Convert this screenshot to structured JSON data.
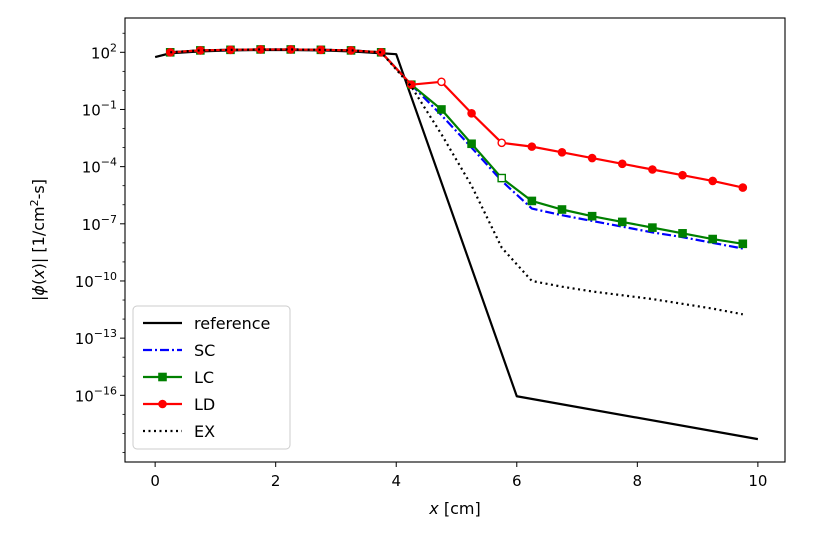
{
  "chart_data": {
    "type": "line",
    "title": "",
    "xlabel_italic": "x",
    "xlabel_rest": " [cm]",
    "ylabel": {
      "pre": "|",
      "phi": "ϕ",
      "mid": "(",
      "x": "x",
      "post": ")| [1/cm",
      "sup": "2",
      "end": "-s]"
    },
    "xscale": "linear",
    "yscale": "log",
    "xlim": [
      -0.5,
      10.45
    ],
    "ylim_exp": [
      -19.5,
      3.8
    ],
    "xticks": [
      0,
      2,
      4,
      6,
      8,
      10
    ],
    "xtick_labels": [
      "0",
      "2",
      "4",
      "6",
      "8",
      "10"
    ],
    "yticks_exp": [
      2,
      -1,
      -4,
      -7,
      -10,
      -13,
      -16
    ],
    "ytick_labels": [
      {
        "base": "10",
        "exp": "2"
      },
      {
        "base": "10",
        "exp": "−1"
      },
      {
        "base": "10",
        "exp": "−4"
      },
      {
        "base": "10",
        "exp": "−7"
      },
      {
        "base": "10",
        "exp": "−10"
      },
      {
        "base": "10",
        "exp": "−13"
      },
      {
        "base": "10",
        "exp": "−16"
      }
    ],
    "legend_position": "lower-left",
    "series": [
      {
        "name": "reference",
        "color": "#000000",
        "style": "solid",
        "marker": "none",
        "x": [
          0.0,
          0.25,
          0.75,
          1.25,
          1.75,
          2.25,
          2.75,
          3.25,
          3.75,
          4.0,
          6.0,
          10.0
        ],
        "log10_y": [
          1.75,
          1.95,
          2.05,
          2.1,
          2.12,
          2.12,
          2.1,
          2.05,
          1.95,
          1.9,
          -16.05,
          -18.3
        ]
      },
      {
        "name": "SC",
        "color": "#0000ff",
        "style": "dashdot",
        "marker": "none",
        "x": [
          0.25,
          0.75,
          1.25,
          1.75,
          2.25,
          2.75,
          3.25,
          3.75,
          4.25,
          4.75,
          5.25,
          5.75,
          6.25,
          6.75,
          7.25,
          7.75,
          8.25,
          8.75,
          9.25,
          9.75
        ],
        "log10_y": [
          2.0,
          2.1,
          2.13,
          2.15,
          2.15,
          2.13,
          2.1,
          2.0,
          0.3,
          -1.3,
          -3.0,
          -4.75,
          -6.2,
          -6.55,
          -6.85,
          -7.15,
          -7.45,
          -7.7,
          -8.0,
          -8.3
        ]
      },
      {
        "name": "LC",
        "color": "#008000",
        "style": "solid",
        "marker": "square",
        "x": [
          0.25,
          0.75,
          1.25,
          1.75,
          2.25,
          2.75,
          3.25,
          3.75,
          4.25,
          4.75,
          5.25,
          5.75,
          6.25,
          6.75,
          7.25,
          7.75,
          8.25,
          8.75,
          9.25,
          9.75
        ],
        "log10_y": [
          2.0,
          2.1,
          2.13,
          2.15,
          2.15,
          2.13,
          2.1,
          2.0,
          0.3,
          -1.0,
          -2.8,
          -4.6,
          -5.8,
          -6.25,
          -6.6,
          -6.9,
          -7.2,
          -7.5,
          -7.8,
          -8.05
        ],
        "hollow_x": [
          5.75
        ]
      },
      {
        "name": "LD",
        "color": "#ff0000",
        "style": "solid",
        "marker": "circle",
        "x": [
          0.25,
          0.75,
          1.25,
          1.75,
          2.25,
          2.75,
          3.25,
          3.75,
          4.25,
          4.75,
          5.25,
          5.75,
          6.25,
          6.75,
          7.25,
          7.75,
          8.25,
          8.75,
          9.25,
          9.75
        ],
        "log10_y": [
          2.0,
          2.1,
          2.13,
          2.15,
          2.15,
          2.13,
          2.1,
          2.0,
          0.3,
          0.45,
          -1.2,
          -2.75,
          -2.95,
          -3.25,
          -3.55,
          -3.85,
          -4.15,
          -4.45,
          -4.75,
          -5.1
        ],
        "hollow_x": [
          4.75,
          5.75
        ]
      },
      {
        "name": "EX",
        "color": "#000000",
        "style": "dotted",
        "marker": "none",
        "x": [
          0.25,
          0.75,
          1.25,
          1.75,
          2.25,
          2.75,
          3.25,
          3.75,
          4.25,
          4.75,
          5.25,
          5.75,
          6.25,
          6.75,
          7.25,
          7.75,
          8.25,
          8.75,
          9.25,
          9.75
        ],
        "log10_y": [
          2.0,
          2.1,
          2.13,
          2.15,
          2.15,
          2.13,
          2.1,
          2.0,
          0.2,
          -2.3,
          -5.0,
          -8.25,
          -10.0,
          -10.3,
          -10.55,
          -10.75,
          -10.95,
          -11.2,
          -11.45,
          -11.75
        ]
      }
    ]
  }
}
